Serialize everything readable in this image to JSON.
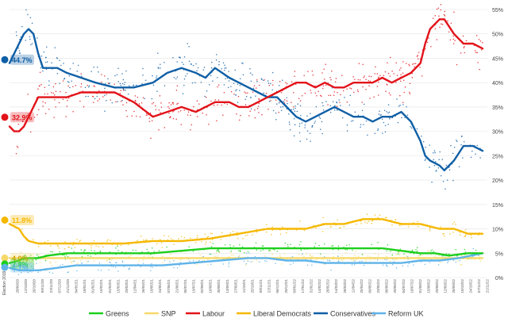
{
  "chart_data": {
    "type": "line",
    "title": "",
    "xlabel": "",
    "ylabel": "",
    "ylim": [
      0,
      55
    ],
    "yticks": [
      "0%",
      "5%",
      "10%",
      "15%",
      "20%",
      "25%",
      "30%",
      "35%",
      "40%",
      "45%",
      "50%",
      "55%"
    ],
    "grid": true,
    "legend_position": "bottom",
    "x_range": [
      0,
      100
    ],
    "election_label": "Election 2019",
    "xtick_labels": [
      "28/09/20",
      "12/10/20",
      "26/10/20",
      "09/11/20",
      "23/11/20",
      "07/12/20",
      "21/12/20",
      "04/01/21",
      "18/01/21",
      "01/02/21",
      "15/02/21",
      "01/03/21",
      "15/03/21",
      "29/03/21",
      "12/04/21",
      "26/04/21",
      "10/05/21",
      "24/05/21",
      "07/06/21",
      "21/06/21",
      "05/07/21",
      "19/07/21",
      "02/08/21",
      "16/08/21",
      "30/08/21",
      "13/09/21",
      "27/09/21",
      "11/10/21",
      "25/10/21",
      "08/11/21",
      "22/11/21",
      "06/12/21",
      "20/12/21",
      "03/01/22",
      "17/01/22",
      "31/01/22",
      "14/02/22",
      "28/02/22",
      "14/03/22",
      "28/03/22",
      "11/04/22",
      "25/04/22",
      "09/05/22",
      "23/05/22",
      "06/06/22",
      "20/06/22",
      "04/07/22",
      "18/07/22",
      "01/08/22",
      "15/08/22",
      "29/08/22",
      "12/09/22",
      "26/09/22",
      "10/10/22",
      "24/10/22",
      "07/11/22",
      "21/11/22"
    ],
    "series": [
      {
        "name": "Conservatives",
        "color": "#0f5fa6",
        "election_value": 44.7,
        "election_label": "44.7%",
        "x": [
          0,
          1,
          2,
          3,
          4,
          5,
          6,
          7,
          8,
          10,
          12,
          15,
          18,
          22,
          26,
          30,
          33,
          36,
          39,
          41,
          43,
          46,
          48,
          50,
          52,
          54,
          56,
          58,
          60,
          62,
          64,
          66,
          68,
          70,
          72,
          74,
          76,
          78,
          80,
          82,
          84,
          86,
          87,
          88,
          90,
          91,
          93,
          95,
          97,
          99
        ],
        "values": [
          44,
          46,
          48,
          50,
          51,
          50,
          46,
          43,
          43,
          43,
          42,
          41,
          40,
          39,
          39,
          40,
          42,
          43,
          42,
          41,
          43,
          41,
          40,
          39,
          38,
          37,
          37,
          35,
          33,
          32,
          33,
          34,
          35,
          34,
          33,
          33,
          32,
          33,
          33,
          34,
          32,
          28,
          25,
          24,
          23,
          22,
          24,
          27,
          27,
          26
        ]
      },
      {
        "name": "Labour",
        "color": "#e2131a",
        "election_value": 32.9,
        "election_label": "32.9%",
        "x": [
          0,
          1,
          2,
          3,
          4,
          5,
          6,
          7,
          8,
          10,
          12,
          15,
          18,
          22,
          26,
          30,
          33,
          36,
          39,
          41,
          43,
          46,
          48,
          50,
          52,
          54,
          56,
          58,
          60,
          62,
          64,
          66,
          68,
          70,
          72,
          74,
          76,
          78,
          80,
          82,
          84,
          86,
          87,
          88,
          90,
          91,
          93,
          95,
          97,
          99
        ],
        "values": [
          31,
          30,
          30,
          31,
          33,
          35,
          37,
          37,
          37,
          37,
          37,
          38,
          38,
          38,
          36,
          33,
          34,
          35,
          34,
          35,
          36,
          36,
          35,
          35,
          36,
          37,
          38,
          39,
          40,
          40,
          39,
          40,
          39,
          39,
          40,
          40,
          40,
          41,
          40,
          41,
          42,
          44,
          48,
          51,
          53,
          53,
          50,
          48,
          48,
          47
        ]
      },
      {
        "name": "Liberal Democrats",
        "color": "#f5b800",
        "election_value": 11.8,
        "election_label": "11.8%",
        "x": [
          0,
          2,
          3,
          4,
          6,
          8,
          12,
          18,
          24,
          30,
          36,
          42,
          48,
          54,
          58,
          62,
          66,
          70,
          74,
          78,
          82,
          86,
          90,
          93,
          96,
          99
        ],
        "values": [
          11,
          10,
          8.5,
          7.5,
          7,
          7,
          7,
          7,
          7,
          7.5,
          7.5,
          8,
          9,
          10,
          10,
          10,
          11,
          11,
          12,
          12,
          11,
          11,
          10,
          10,
          9,
          9
        ]
      },
      {
        "name": "Greens",
        "color": "#1ccf1c",
        "election_value": 2.8,
        "election_label": "2.8%",
        "x": [
          0,
          2,
          3,
          4,
          6,
          8,
          12,
          18,
          24,
          30,
          36,
          42,
          46,
          50,
          54,
          58,
          62,
          66,
          70,
          74,
          78,
          82,
          86,
          89,
          92,
          96,
          99
        ],
        "values": [
          3,
          3.5,
          4,
          4,
          4,
          4.5,
          5,
          5,
          5,
          5,
          5.5,
          6,
          6,
          6,
          6,
          6,
          6,
          6,
          6,
          6,
          6,
          5.5,
          5,
          5,
          4.5,
          5,
          5
        ]
      },
      {
        "name": "SNP",
        "color": "#f7d96a",
        "election_value": 4.0,
        "election_label": "4.0%",
        "x": [
          0,
          4,
          10,
          20,
          30,
          40,
          50,
          60,
          70,
          80,
          90,
          99
        ],
        "values": [
          4,
          4,
          4,
          4,
          4,
          4,
          4,
          4,
          4,
          4,
          4,
          4
        ]
      },
      {
        "name": "Reform UK",
        "color": "#5fb3e8",
        "election_value": 2.1,
        "election_label": "2.1%",
        "x": [
          0,
          2,
          4,
          6,
          10,
          14,
          20,
          26,
          32,
          38,
          44,
          50,
          54,
          58,
          62,
          66,
          70,
          74,
          78,
          82,
          86,
          90,
          94,
          99
        ],
        "values": [
          2,
          1.5,
          1.5,
          1.5,
          2,
          2.5,
          2.5,
          2.5,
          2.5,
          3,
          3.5,
          4,
          4,
          3.5,
          3.5,
          3,
          3,
          3,
          3,
          3,
          3.5,
          3.5,
          4,
          5
        ]
      }
    ]
  }
}
